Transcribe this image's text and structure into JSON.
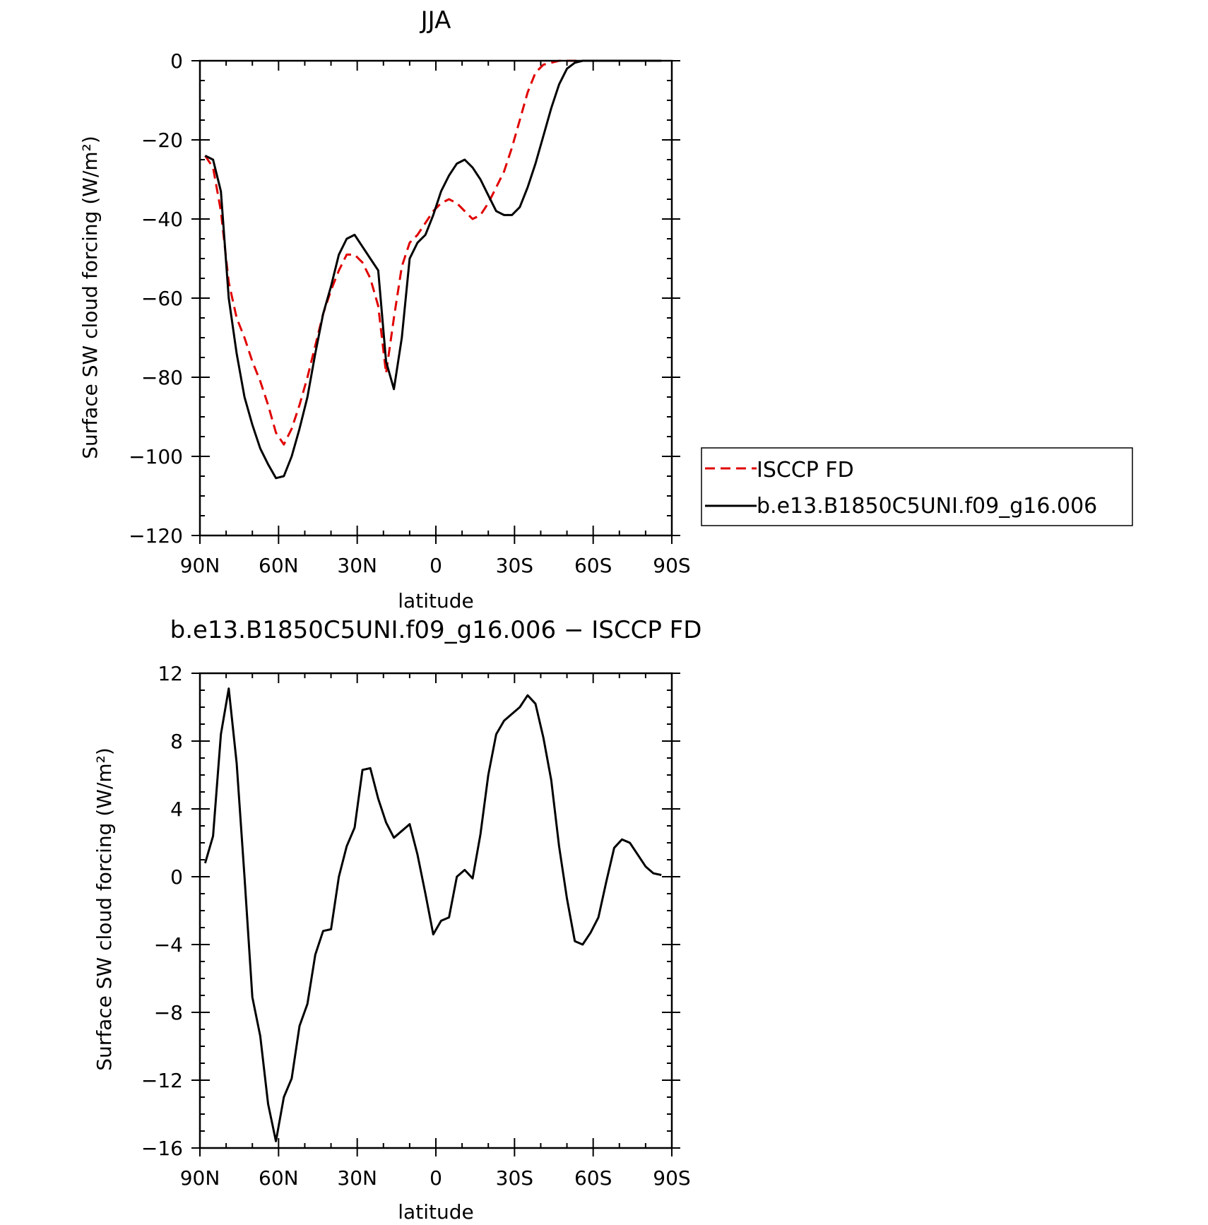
{
  "chart_data": [
    {
      "type": "line",
      "title": "JJA",
      "xlabel": "latitude",
      "ylabel": "Surface SW cloud forcing (W/m²)",
      "xlim": [
        90,
        -90
      ],
      "ylim": [
        -120,
        0
      ],
      "x_ticks": [
        {
          "value": 90,
          "label": "90N"
        },
        {
          "value": 60,
          "label": "60N"
        },
        {
          "value": 30,
          "label": "30N"
        },
        {
          "value": 0,
          "label": "0"
        },
        {
          "value": -30,
          "label": "30S"
        },
        {
          "value": -60,
          "label": "60S"
        },
        {
          "value": -90,
          "label": "90S"
        }
      ],
      "y_ticks": [
        0,
        -20,
        -40,
        -60,
        -80,
        -100,
        -120
      ],
      "legend": {
        "placement": "right",
        "entries": [
          "ISCCP FD",
          "b.e13.B1850C5UNI.f09_g16.006"
        ]
      },
      "series": [
        {
          "name": "ISCCP FD",
          "color": "#e00000",
          "dash": true,
          "x": [
            88,
            85,
            82,
            79,
            76,
            73,
            70,
            67,
            64,
            61,
            58,
            55,
            52,
            49,
            46,
            43,
            40,
            37,
            34,
            31,
            28,
            25,
            22,
            19,
            16,
            13,
            10,
            7,
            4,
            1,
            -2,
            -5,
            -8,
            -11,
            -14,
            -17,
            -20,
            -23,
            -26,
            -29,
            -32,
            -35,
            -38,
            -41,
            -44,
            -47,
            -50,
            -53,
            -56,
            -59,
            -62,
            -65,
            -68,
            -71,
            -74,
            -77,
            -80,
            -83,
            -86
          ],
          "values": [
            -24,
            -27,
            -38,
            -56,
            -65,
            -70,
            -76,
            -81,
            -87,
            -94,
            -97,
            -93,
            -87,
            -80,
            -72,
            -64,
            -58,
            -53,
            -49,
            -49,
            -51,
            -55,
            -62,
            -79,
            -65,
            -52,
            -46,
            -44,
            -41,
            -38,
            -36,
            -35,
            -36,
            -38,
            -40,
            -39,
            -36,
            -32,
            -28,
            -22,
            -15,
            -8,
            -3,
            -1,
            -0.5,
            0,
            0,
            0,
            0,
            0,
            0,
            0,
            0,
            0,
            0,
            0,
            0,
            0,
            0
          ]
        },
        {
          "name": "b.e13.B1850C5UNI.f09_g16.006",
          "color": "#000000",
          "dash": false,
          "x": [
            88,
            85,
            82,
            79,
            76,
            73,
            70,
            67,
            64,
            61,
            58,
            55,
            52,
            49,
            46,
            43,
            40,
            37,
            34,
            31,
            28,
            25,
            22,
            19,
            16,
            13,
            10,
            7,
            4,
            1,
            -2,
            -5,
            -8,
            -11,
            -14,
            -17,
            -20,
            -23,
            -26,
            -29,
            -32,
            -35,
            -38,
            -41,
            -44,
            -47,
            -50,
            -53,
            -56,
            -59,
            -62,
            -65,
            -68,
            -71,
            -74,
            -77,
            -80,
            -83,
            -86
          ],
          "values": [
            -24,
            -25,
            -33,
            -60,
            -74,
            -85,
            -92,
            -98,
            -102,
            -105.5,
            -105,
            -100,
            -93,
            -85,
            -74,
            -64,
            -57,
            -49,
            -45,
            -44,
            -47,
            -50,
            -53,
            -76,
            -83,
            -70,
            -50,
            -46,
            -44,
            -39,
            -33,
            -29,
            -26,
            -25,
            -27,
            -30,
            -34,
            -38,
            -39,
            -39,
            -37,
            -32,
            -26,
            -19,
            -12,
            -6,
            -2,
            -0.5,
            0,
            0,
            0,
            0,
            0,
            0,
            0,
            0,
            0,
            0,
            0
          ]
        }
      ]
    },
    {
      "type": "line",
      "title": "b.e13.B1850C5UNI.f09_g16.006 − ISCCP FD",
      "xlabel": "latitude",
      "ylabel": "Surface SW cloud forcing (W/m²)",
      "xlim": [
        90,
        -90
      ],
      "ylim": [
        -16,
        12
      ],
      "x_ticks": [
        {
          "value": 90,
          "label": "90N"
        },
        {
          "value": 60,
          "label": "60N"
        },
        {
          "value": 30,
          "label": "30N"
        },
        {
          "value": 0,
          "label": "0"
        },
        {
          "value": -30,
          "label": "30S"
        },
        {
          "value": -60,
          "label": "60S"
        },
        {
          "value": -90,
          "label": "90S"
        }
      ],
      "y_ticks": [
        12,
        8,
        4,
        0,
        -4,
        -8,
        -12,
        -16
      ],
      "series": [
        {
          "color": "#000000",
          "dash": false,
          "x": [
            88,
            85,
            82,
            79,
            76,
            73,
            70,
            67,
            64,
            61,
            58,
            55,
            52,
            49,
            46,
            43,
            40,
            37,
            34,
            31,
            28,
            25,
            22,
            19,
            16,
            13,
            10,
            7,
            4,
            1,
            -2,
            -5,
            -8,
            -11,
            -14,
            -17,
            -20,
            -23,
            -26,
            -29,
            -32,
            -35,
            -38,
            -41,
            -44,
            -47,
            -50,
            -53,
            -56,
            -59,
            -62,
            -65,
            -68,
            -71,
            -74,
            -77,
            -80,
            -83,
            -86
          ],
          "values": [
            0.8,
            2.4,
            8.4,
            11.1,
            6.7,
            0,
            -7.1,
            -9.4,
            -13.4,
            -15.6,
            -13,
            -11.9,
            -8.8,
            -7.5,
            -4.6,
            -3.2,
            -3.1,
            0,
            1.8,
            2.9,
            6.3,
            6.4,
            4.6,
            3.2,
            2.3,
            2.7,
            3.1,
            1.3,
            -1,
            -3.4,
            -2.6,
            -2.4,
            0,
            0.4,
            -0.1,
            2.5,
            6.0,
            8.4,
            9.2,
            9.6,
            10.0,
            10.7,
            10.2,
            8.2,
            5.7,
            1.8,
            -1.3,
            -3.8,
            -4.0,
            -3.3,
            -2.4,
            -0.3,
            1.7,
            2.2,
            2.0,
            1.3,
            0.6,
            0.2,
            0.1
          ]
        }
      ]
    }
  ]
}
